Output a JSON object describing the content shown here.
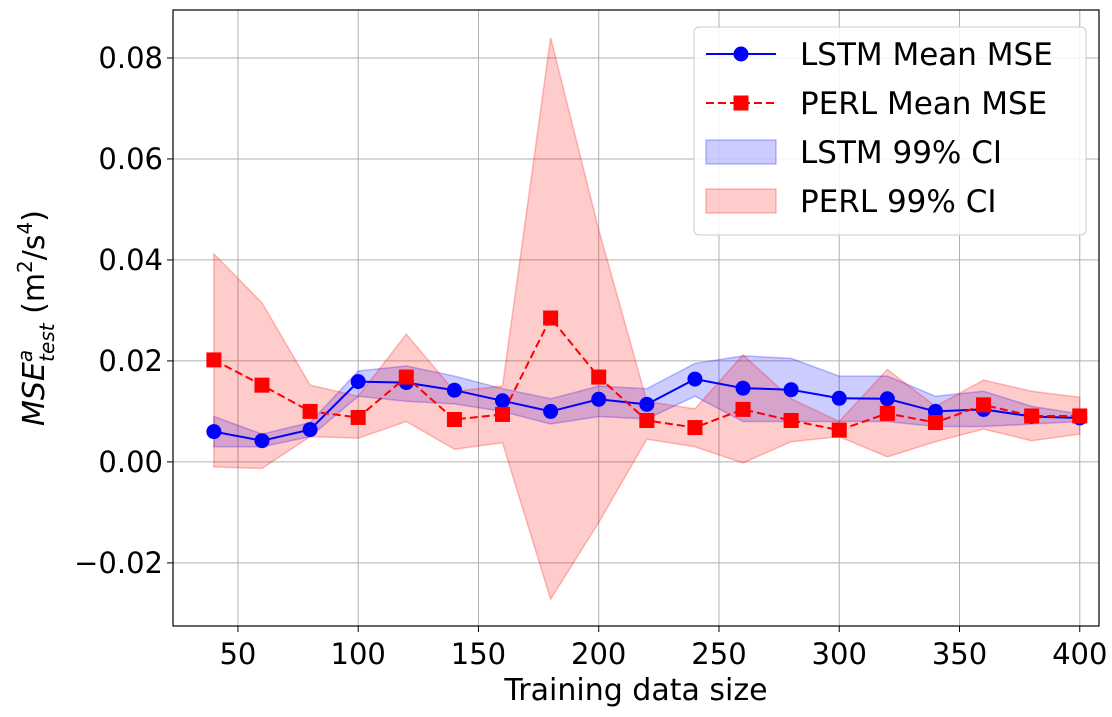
{
  "chart_data": {
    "type": "line",
    "x": [
      40,
      60,
      80,
      100,
      120,
      140,
      160,
      180,
      200,
      220,
      240,
      260,
      280,
      300,
      320,
      340,
      360,
      380,
      400
    ],
    "series": [
      {
        "name": "LSTM Mean MSE",
        "color": "#0000ff",
        "line_style": "solid",
        "marker": "circle",
        "values": [
          0.006,
          0.0042,
          0.0064,
          0.0159,
          0.0157,
          0.0142,
          0.0121,
          0.01,
          0.0124,
          0.0114,
          0.0164,
          0.0146,
          0.0143,
          0.0126,
          0.0125,
          0.01,
          0.0104,
          0.009,
          0.0087
        ]
      },
      {
        "name": "PERL Mean MSE",
        "color": "#ff0000",
        "line_style": "dashed",
        "marker": "square",
        "values": [
          0.0202,
          0.0152,
          0.01,
          0.0088,
          0.0168,
          0.0084,
          0.0094,
          0.0285,
          0.0168,
          0.0082,
          0.0068,
          0.0104,
          0.0082,
          0.0063,
          0.0096,
          0.0078,
          0.0113,
          0.0091,
          0.0091
        ]
      }
    ],
    "bands": [
      {
        "name": "LSTM 99% CI",
        "color": "#0000ff",
        "lower": [
          0.003,
          0.003,
          0.005,
          0.013,
          0.012,
          0.0115,
          0.01,
          0.0075,
          0.009,
          0.0085,
          0.013,
          0.008,
          0.008,
          0.008,
          0.008,
          0.007,
          0.007,
          0.0075,
          0.008
        ],
        "upper": [
          0.009,
          0.0055,
          0.0078,
          0.018,
          0.019,
          0.017,
          0.0145,
          0.0125,
          0.015,
          0.0145,
          0.0195,
          0.021,
          0.0205,
          0.017,
          0.017,
          0.013,
          0.014,
          0.011,
          0.0095
        ]
      },
      {
        "name": "PERL 99% CI",
        "color": "#ff0000",
        "lower": [
          -0.001,
          -0.0013,
          0.005,
          0.0047,
          0.008,
          0.0025,
          0.0038,
          -0.0272,
          -0.012,
          0.0045,
          0.003,
          -0.0002,
          0.004,
          0.005,
          0.001,
          0.004,
          0.0065,
          0.0042,
          0.0055
        ],
        "upper": [
          0.0412,
          0.0315,
          0.0152,
          0.013,
          0.0253,
          0.014,
          0.015,
          0.084,
          0.046,
          0.012,
          0.0105,
          0.0212,
          0.0125,
          0.008,
          0.0183,
          0.011,
          0.0162,
          0.014,
          0.0128
        ]
      }
    ],
    "xlabel": "Training data size",
    "ylabel_prefix": "MSE",
    "ylabel_superscript": "a",
    "ylabel_subscript": "test",
    "ylabel_unit_open": " (m",
    "ylabel_unit_exp1": "2",
    "ylabel_unit_mid": "/s",
    "ylabel_unit_exp2": "4",
    "ylabel_unit_close": ")",
    "xlim": [
      23,
      408
    ],
    "ylim": [
      -0.0325,
      0.0895
    ],
    "xticks": [
      50,
      100,
      150,
      200,
      250,
      300,
      350,
      400
    ],
    "yticks": [
      -0.02,
      0.0,
      0.02,
      0.04,
      0.06,
      0.08
    ],
    "ytick_labels": [
      "−0.02",
      "0.00",
      "0.02",
      "0.04",
      "0.06",
      "0.08"
    ],
    "grid": true,
    "legend_position": "top-right",
    "legend_items": [
      "LSTM Mean MSE",
      "PERL Mean MSE",
      "LSTM 99% CI",
      "PERL 99% CI"
    ]
  }
}
